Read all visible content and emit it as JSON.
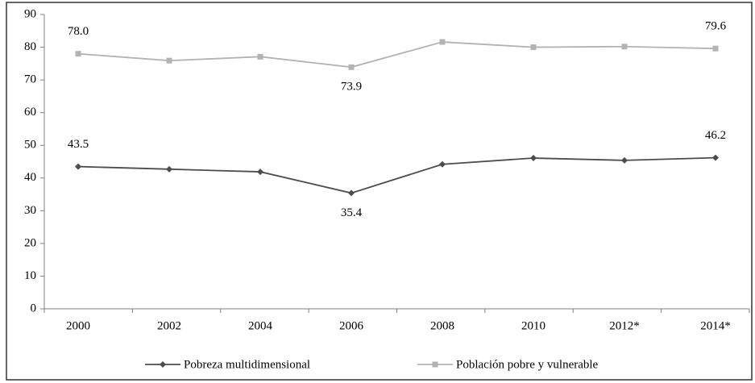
{
  "chart_data": {
    "type": "line",
    "categories": [
      "2000",
      "2002",
      "2004",
      "2006",
      "2008",
      "2010",
      "2012*",
      "2014*"
    ],
    "series": [
      {
        "name": "Pobreza multidimensional",
        "color": "#4d4d4d",
        "marker": "diamond",
        "values": [
          43.5,
          42.7,
          41.9,
          35.4,
          44.2,
          46.1,
          45.4,
          46.2
        ],
        "value_labels": [
          "43.5",
          null,
          null,
          "35.4",
          null,
          null,
          null,
          "46.2"
        ]
      },
      {
        "name": "Población pobre y vulnerable",
        "color": "#b3b3b3",
        "marker": "square",
        "values": [
          78.0,
          75.9,
          77.1,
          73.9,
          81.6,
          80.0,
          80.2,
          79.6
        ],
        "value_labels": [
          "78.0",
          null,
          null,
          "73.9",
          null,
          null,
          null,
          "79.6"
        ]
      }
    ],
    "ylim": [
      0,
      90
    ],
    "yticks": [
      0,
      10,
      20,
      30,
      40,
      50,
      60,
      70,
      80,
      90
    ],
    "grid": false,
    "legend": "bottom"
  }
}
